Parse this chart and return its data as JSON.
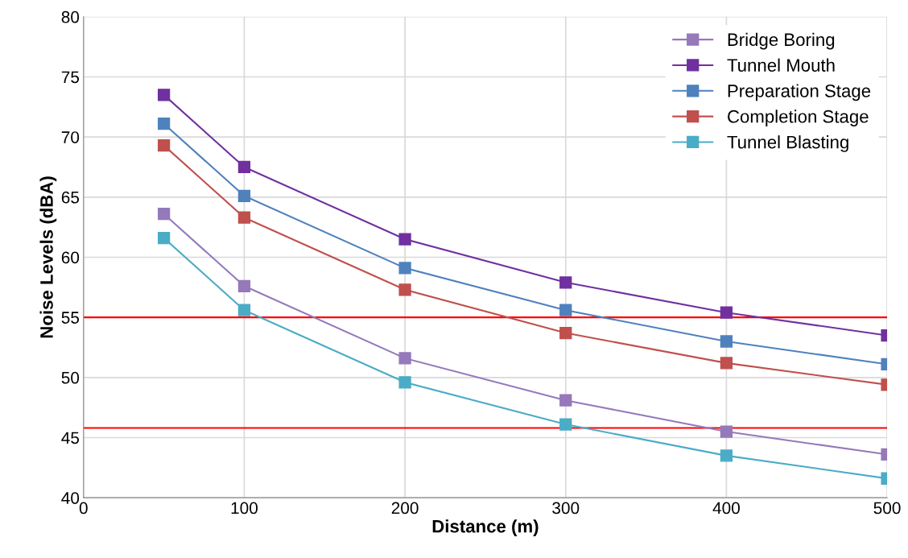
{
  "chart_data": {
    "type": "line",
    "xlabel": "Distance (m)",
    "ylabel": "Noise Levels (dBA)",
    "x": [
      50,
      100,
      200,
      300,
      400,
      500
    ],
    "series": [
      {
        "name": "Bridge Boring",
        "color": "#9579bb",
        "values": [
          63.6,
          57.6,
          51.6,
          48.1,
          45.5,
          43.6
        ]
      },
      {
        "name": "Tunnel Mouth",
        "color": "#7030a0",
        "values": [
          73.5,
          67.5,
          61.5,
          57.9,
          55.4,
          53.5
        ]
      },
      {
        "name": "Preparation Stage",
        "color": "#4f81bd",
        "values": [
          71.1,
          65.1,
          59.1,
          55.6,
          53.0,
          51.1
        ]
      },
      {
        "name": "Completion Stage",
        "color": "#c0504d",
        "values": [
          69.3,
          63.3,
          57.3,
          53.7,
          51.2,
          49.4
        ]
      },
      {
        "name": "Tunnel Blasting",
        "color": "#4bacc6",
        "values": [
          61.6,
          55.6,
          49.6,
          46.1,
          43.5,
          41.6
        ]
      }
    ],
    "xlim": [
      0,
      500
    ],
    "xticks": [
      0,
      100,
      200,
      300,
      400,
      500
    ],
    "ylim": [
      40,
      80
    ],
    "yticks": [
      40,
      45,
      50,
      55,
      60,
      65,
      70,
      75,
      80
    ],
    "ref_lines": [
      {
        "axis": "y",
        "value": 55,
        "color": "#ff0000"
      },
      {
        "axis": "y",
        "value": 45.8,
        "color": "#ff0000"
      }
    ],
    "grid": true,
    "legend": "top right",
    "marker": "square",
    "line_style": "solid"
  }
}
